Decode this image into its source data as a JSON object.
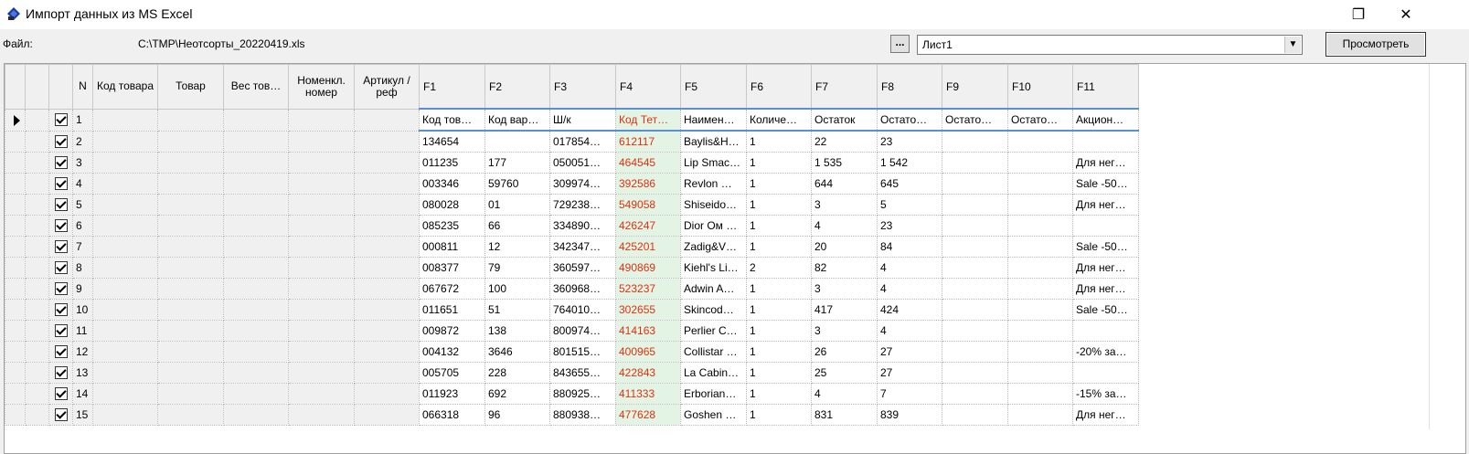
{
  "window": {
    "title": "Импорт данных из MS Excel",
    "maximize_glyph": "❐",
    "close_glyph": "✕"
  },
  "toolbar": {
    "file_label": "Файл:",
    "file_path": "C:\\TMP\\Неотсорты_20220419.xls",
    "browse_label": "...",
    "sheet_selected": "Лист1",
    "preview_label": "Просмотреть"
  },
  "grid": {
    "columns": [
      "N",
      "Код товара",
      "Товар",
      "Вес тов…",
      "Номенкл. номер",
      "Артикул / реф",
      "F1",
      "F2",
      "F3",
      "F4",
      "F5",
      "F6",
      "F7",
      "F8",
      "F9",
      "F10",
      "F11"
    ],
    "rows": [
      {
        "n": "1",
        "f1": "Код тов…",
        "f2": "Код вар…",
        "f3": "Ш/к",
        "f4": "Код Тет…",
        "f5": "Наимен…",
        "f6": "Количе…",
        "f7": "Остаток",
        "f8": "Остато…",
        "f9": "Остато…",
        "f10": "Остато…",
        "f11": "Акцион…"
      },
      {
        "n": "2",
        "f1": "134654",
        "f2": "",
        "f3": "017854…",
        "f4": "612117",
        "f5": "Baylis&H…",
        "f6": "1",
        "f7": "22",
        "f8": "23",
        "f9": "",
        "f10": "",
        "f11": ""
      },
      {
        "n": "3",
        "f1": "011235",
        "f2": "177",
        "f3": "050051…",
        "f4": "464545",
        "f5": "Lip Smac…",
        "f6": "1",
        "f7": "1 535",
        "f8": "1 542",
        "f9": "",
        "f10": "",
        "f11": "Для нег…"
      },
      {
        "n": "4",
        "f1": "003346",
        "f2": "59760",
        "f3": "309974…",
        "f4": "392586",
        "f5": "Revlon …",
        "f6": "1",
        "f7": "644",
        "f8": "645",
        "f9": "",
        "f10": "",
        "f11": "Sale -50…"
      },
      {
        "n": "5",
        "f1": "080028",
        "f2": "01",
        "f3": "729238…",
        "f4": "549058",
        "f5": "Shiseido…",
        "f6": "1",
        "f7": "3",
        "f8": "5",
        "f9": "",
        "f10": "",
        "f11": "Для нег…"
      },
      {
        "n": "6",
        "f1": "085235",
        "f2": "66",
        "f3": "334890…",
        "f4": "426247",
        "f5": "Dior Ом …",
        "f6": "1",
        "f7": "4",
        "f8": "23",
        "f9": "",
        "f10": "",
        "f11": ""
      },
      {
        "n": "7",
        "f1": "000811",
        "f2": "12",
        "f3": "342347…",
        "f4": "425201",
        "f5": "Zadig&V…",
        "f6": "1",
        "f7": "20",
        "f8": "84",
        "f9": "",
        "f10": "",
        "f11": "Sale -50…"
      },
      {
        "n": "8",
        "f1": "008377",
        "f2": "79",
        "f3": "360597…",
        "f4": "490869",
        "f5": "Kiehl's Li…",
        "f6": "2",
        "f7": "82",
        "f8": "4",
        "f9": "",
        "f10": "",
        "f11": "Для нег…"
      },
      {
        "n": "9",
        "f1": "067672",
        "f2": "100",
        "f3": "360968…",
        "f4": "523237",
        "f5": "Adwin A…",
        "f6": "1",
        "f7": "3",
        "f8": "4",
        "f9": "",
        "f10": "",
        "f11": "Для нег…"
      },
      {
        "n": "10",
        "f1": "011651",
        "f2": "51",
        "f3": "764010…",
        "f4": "302655",
        "f5": "Skincod…",
        "f6": "1",
        "f7": "417",
        "f8": "424",
        "f9": "",
        "f10": "",
        "f11": "Sale -50…"
      },
      {
        "n": "11",
        "f1": "009872",
        "f2": "138",
        "f3": "800974…",
        "f4": "414163",
        "f5": "Perlier C…",
        "f6": "1",
        "f7": "3",
        "f8": "4",
        "f9": "",
        "f10": "",
        "f11": ""
      },
      {
        "n": "12",
        "f1": "004132",
        "f2": "3646",
        "f3": "801515…",
        "f4": "400965",
        "f5": "Collistar …",
        "f6": "1",
        "f7": "26",
        "f8": "27",
        "f9": "",
        "f10": "",
        "f11": "-20% за…"
      },
      {
        "n": "13",
        "f1": "005705",
        "f2": "228",
        "f3": "843655…",
        "f4": "422843",
        "f5": "La Cabin…",
        "f6": "1",
        "f7": "25",
        "f8": "27",
        "f9": "",
        "f10": "",
        "f11": ""
      },
      {
        "n": "14",
        "f1": "011923",
        "f2": "692",
        "f3": "880925…",
        "f4": "411333",
        "f5": "Erborian…",
        "f6": "1",
        "f7": "4",
        "f8": "7",
        "f9": "",
        "f10": "",
        "f11": "-15% за…"
      },
      {
        "n": "15",
        "f1": "066318",
        "f2": "96",
        "f3": "880938…",
        "f4": "477628",
        "f5": "Goshen …",
        "f6": "1",
        "f7": "831",
        "f8": "839",
        "f9": "",
        "f10": "",
        "f11": "Для нег…"
      }
    ]
  }
}
